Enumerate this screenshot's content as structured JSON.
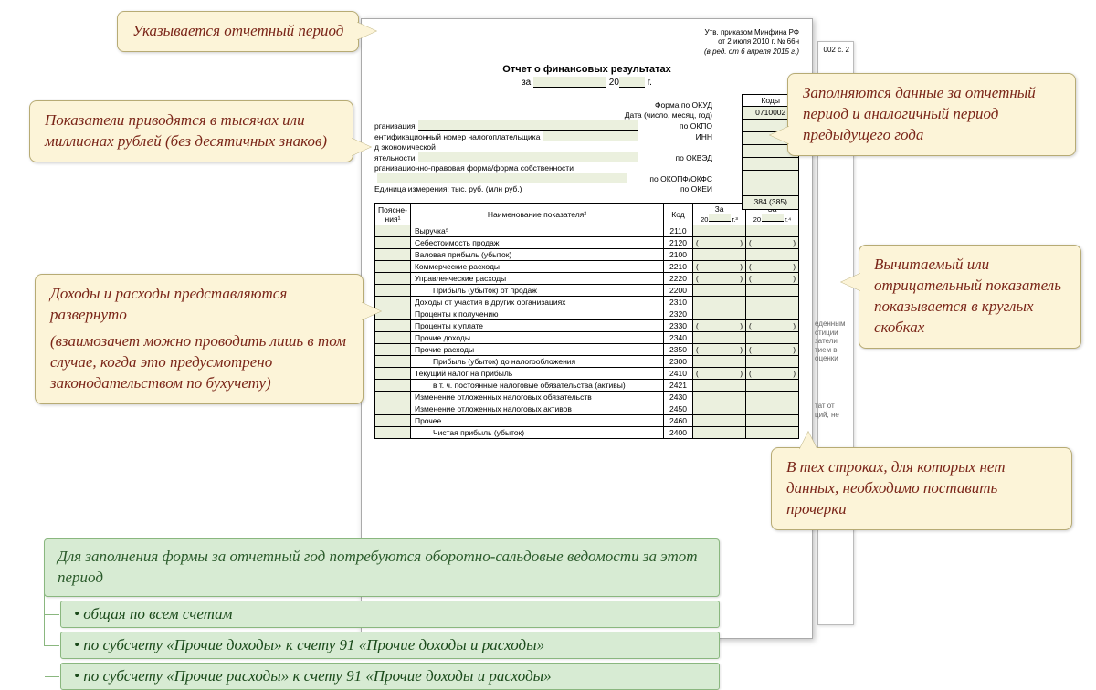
{
  "approval": {
    "l1": "Утв. приказом Минфина РФ",
    "l2": "от 2 июля 2010 г. № 66н",
    "l3": "(в ред. от 6 апреля 2015 г.)"
  },
  "bg_label": "002 с. 2",
  "title": "Отчет о финансовых результатах",
  "period": {
    "za": "за",
    "yr_prefix": "20",
    "g": "г."
  },
  "codes": {
    "hdr": "Коды",
    "okud": "0710002",
    "okei": "384 (385)"
  },
  "meta": {
    "r1": {
      "l": "",
      "r": "Форма по ОКУД"
    },
    "r2": {
      "l": "",
      "r": "Дата (число, месяц, год)"
    },
    "r3": {
      "l": "рганизация",
      "r": "по ОКПО"
    },
    "r4": {
      "l": "ентификационный номер налогоплательщика",
      "r": "ИНН"
    },
    "r5": {
      "l": "д экономической",
      "r": ""
    },
    "r6": {
      "l": "ятельности",
      "r": "по ОКВЭД"
    },
    "r7": {
      "l": "рганизационно-правовая форма/форма собственности",
      "r": ""
    },
    "r8": {
      "l": "",
      "r": "по ОКОПФ/ОКФС"
    },
    "r9": {
      "l": "Единица измерения: тыс. руб. (млн руб.)",
      "r": "по ОКЕИ"
    }
  },
  "thead": {
    "expl": "Поясне-\nния¹",
    "name": "Наименование показателя²",
    "code": "Код",
    "p1a": "За",
    "p1b": "г.³",
    "p2a": "За",
    "p2b": "г.⁴",
    "yr": "20"
  },
  "rows": [
    {
      "name": "Выручка⁵",
      "code": "2110",
      "paren": false
    },
    {
      "name": "Себестоимость продаж",
      "code": "2120",
      "paren": true
    },
    {
      "name": "Валовая прибыль (убыток)",
      "code": "2100",
      "paren": false
    },
    {
      "name": "Коммерческие расходы",
      "code": "2210",
      "paren": true
    },
    {
      "name": "Управленческие расходы",
      "code": "2220",
      "paren": true
    },
    {
      "name": "Прибыль (убыток) от продаж",
      "code": "2200",
      "paren": false,
      "indent": true
    },
    {
      "name": "Доходы от участия в других организациях",
      "code": "2310",
      "paren": false
    },
    {
      "name": "Проценты к получению",
      "code": "2320",
      "paren": false
    },
    {
      "name": "Проценты к уплате",
      "code": "2330",
      "paren": true
    },
    {
      "name": "Прочие доходы",
      "code": "2340",
      "paren": false
    },
    {
      "name": "Прочие расходы",
      "code": "2350",
      "paren": true
    },
    {
      "name": "Прибыль (убыток) до налогообложения",
      "code": "2300",
      "paren": false,
      "indent": true
    },
    {
      "name": "Текущий налог на прибыль",
      "code": "2410",
      "paren": true
    },
    {
      "name": "в т. ч. постоянные налоговые обязательства (активы)",
      "code": "2421",
      "paren": false,
      "indent": true
    },
    {
      "name": "Изменение отложенных налоговых обязательств",
      "code": "2430",
      "paren": false
    },
    {
      "name": "Изменение отложенных налоговых активов",
      "code": "2450",
      "paren": false
    },
    {
      "name": "Прочее",
      "code": "2460",
      "paren": false
    },
    {
      "name": "Чистая прибыль (убыток)",
      "code": "2400",
      "paren": false,
      "indent": true
    }
  ],
  "side_note": {
    "a": "еденным\nстиции\nзатели\nтием в\nоценки",
    "b": "тат от\nций, не"
  },
  "callouts": {
    "c1": "Указывается отчетный период",
    "c2": "Показатели приводятся в тысячах или  миллионах рублей (без десятичных знаков)",
    "c3": "Заполняются данные за отчетный период и аналогичный период предыдущего года",
    "c4a": "Доходы и расходы представляются развернуто",
    "c4b": "(взаимозачет можно проводить лишь в том случае, когда это предусмотрено законодательством по бухучету)",
    "c5": "Вычитаемый или отрицательный показатель показывается в круглых скобках",
    "c6": "В тех строках, для которых нет данных, необходимо поставить прочерки"
  },
  "green": {
    "main": "Для заполнения формы за отчетный год потребуются оборотно-сальдовые ведомости за этот период",
    "i1": "• общая по всем счетам",
    "i2": "• по субсчету «Прочие доходы» к счету 91 «Прочие доходы и расходы»",
    "i3": "• по субсчету «Прочие расходы» к счету 91 «Прочие доходы и расходы»"
  }
}
